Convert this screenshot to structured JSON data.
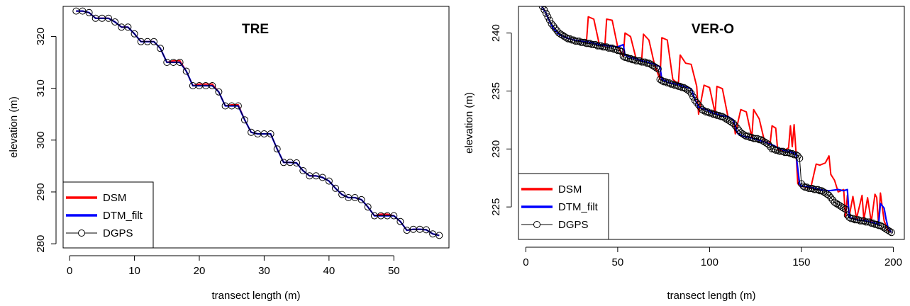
{
  "chart_data": [
    {
      "type": "line",
      "title": "TRE",
      "xlabel": "transect length (m)",
      "ylabel": "elevation (m)",
      "xlim": [
        -1,
        58.5
      ],
      "ylim": [
        279.2,
        325.8
      ],
      "xticks": [
        0,
        10,
        20,
        30,
        40,
        50
      ],
      "yticks": [
        280,
        290,
        300,
        310,
        320
      ],
      "legend_position": "bottom-left",
      "series": [
        {
          "name": "DSM",
          "color": "#ff0000",
          "x": [
            1,
            2,
            3,
            4,
            5,
            6,
            7,
            8,
            9,
            10,
            11,
            12,
            13,
            14,
            15,
            16,
            17,
            18,
            19,
            20,
            21,
            22,
            23,
            24,
            25,
            26,
            27,
            28,
            29,
            30,
            31,
            32,
            33,
            34,
            35,
            36,
            37,
            38,
            39,
            40,
            41,
            42,
            43,
            44,
            45,
            46,
            47,
            48,
            49,
            50,
            51,
            52,
            53,
            54,
            55,
            56,
            57
          ],
          "y": [
            324.9,
            324.9,
            324.6,
            323.5,
            323.5,
            323.5,
            322.8,
            321.8,
            321.8,
            320.5,
            319.0,
            319.0,
            319.0,
            317.7,
            315.0,
            315.3,
            315.3,
            313.3,
            310.5,
            310.8,
            310.8,
            310.8,
            309.3,
            306.6,
            306.8,
            306.8,
            303.9,
            301.5,
            301.2,
            301.2,
            301.2,
            298.3,
            295.7,
            295.7,
            295.6,
            294.1,
            293.1,
            293.1,
            292.8,
            292.1,
            290.7,
            289.5,
            288.9,
            288.9,
            288.5,
            287.1,
            285.4,
            285.7,
            285.7,
            285.4,
            284.3,
            282.6,
            282.8,
            282.8,
            282.7,
            281.9,
            281.6
          ]
        },
        {
          "name": "DTM_filt",
          "color": "#0000ff",
          "x": [
            1,
            2,
            3,
            4,
            5,
            6,
            7,
            8,
            9,
            10,
            11,
            12,
            13,
            14,
            15,
            16,
            17,
            18,
            19,
            20,
            21,
            22,
            23,
            24,
            25,
            26,
            27,
            28,
            29,
            30,
            31,
            32,
            33,
            34,
            35,
            36,
            37,
            38,
            39,
            40,
            41,
            42,
            43,
            44,
            45,
            46,
            47,
            48,
            49,
            50,
            51,
            52,
            53,
            54,
            55,
            56,
            57
          ],
          "y": [
            324.9,
            324.9,
            324.6,
            323.5,
            323.5,
            323.5,
            322.8,
            321.8,
            321.8,
            320.5,
            319.0,
            319.0,
            319.0,
            317.7,
            315.0,
            315.0,
            315.0,
            313.3,
            310.5,
            310.5,
            310.5,
            310.5,
            309.3,
            306.6,
            306.6,
            306.6,
            303.9,
            301.5,
            301.2,
            301.2,
            301.2,
            298.3,
            295.7,
            295.7,
            295.6,
            294.1,
            293.1,
            293.1,
            292.8,
            292.1,
            290.7,
            289.5,
            288.9,
            288.9,
            288.5,
            287.1,
            285.4,
            285.4,
            285.4,
            285.4,
            284.3,
            282.6,
            282.8,
            282.8,
            282.7,
            281.9,
            281.6
          ]
        },
        {
          "name": "DGPS",
          "color": "#000000",
          "marker": "open-circle",
          "x": [
            1,
            2,
            3,
            4,
            5,
            6,
            7,
            8,
            9,
            10,
            11,
            12,
            13,
            14,
            15,
            16,
            17,
            18,
            19,
            20,
            21,
            22,
            23,
            24,
            25,
            26,
            27,
            28,
            29,
            30,
            31,
            32,
            33,
            34,
            35,
            36,
            37,
            38,
            39,
            40,
            41,
            42,
            43,
            44,
            45,
            46,
            47,
            48,
            49,
            50,
            51,
            52,
            53,
            54,
            55,
            56,
            57
          ],
          "y": [
            324.9,
            324.9,
            324.6,
            323.5,
            323.5,
            323.5,
            322.8,
            321.8,
            321.8,
            320.5,
            319.0,
            319.0,
            319.0,
            317.7,
            315.0,
            315.0,
            315.0,
            313.3,
            310.5,
            310.5,
            310.5,
            310.5,
            309.3,
            306.6,
            306.6,
            306.6,
            303.9,
            301.5,
            301.2,
            301.2,
            301.2,
            298.3,
            295.7,
            295.7,
            295.6,
            294.1,
            293.1,
            293.1,
            292.8,
            292.1,
            290.7,
            289.5,
            288.9,
            288.9,
            288.5,
            287.1,
            285.4,
            285.4,
            285.4,
            285.4,
            284.3,
            282.6,
            282.8,
            282.8,
            282.7,
            281.9,
            281.6
          ]
        }
      ]
    },
    {
      "type": "line",
      "title": "VER-O",
      "xlabel": "transect length (m)",
      "ylabel": "elevation (m)",
      "xlim": [
        -4,
        206
      ],
      "ylim": [
        222.2,
        242.3
      ],
      "xticks": [
        0,
        50,
        100,
        150,
        200
      ],
      "yticks": [
        225,
        230,
        235,
        240
      ],
      "legend_position": "bottom-left",
      "series": [
        {
          "name": "DSM",
          "color": "#ff0000",
          "x": [
            8,
            11,
            13,
            15,
            18,
            22,
            26,
            30,
            33,
            34,
            37,
            40,
            43,
            44,
            47,
            50,
            53,
            54,
            57,
            60,
            63,
            64,
            67,
            70,
            73,
            74,
            77,
            80,
            83,
            84,
            87,
            90,
            93,
            94,
            97,
            100,
            103,
            104,
            107,
            110,
            113,
            114,
            117,
            120,
            123,
            124,
            127,
            130,
            133,
            134,
            136,
            137,
            140,
            143,
            144,
            145,
            146,
            147,
            148,
            150,
            155,
            158,
            160,
            163,
            165,
            166,
            168,
            170,
            173,
            174,
            175,
            176,
            178,
            180,
            183,
            184,
            186,
            188,
            190,
            191,
            192,
            193,
            195,
            197,
            199
          ],
          "y": [
            242.5,
            241.7,
            241.0,
            240.4,
            239.9,
            239.6,
            239.4,
            239.3,
            239.2,
            241.4,
            241.2,
            239.0,
            238.9,
            241.2,
            241.1,
            238.8,
            238.0,
            240.0,
            239.7,
            237.8,
            237.6,
            239.9,
            239.4,
            237.3,
            236.0,
            239.6,
            239.4,
            236.0,
            235.6,
            238.1,
            237.4,
            237.3,
            235.4,
            233.0,
            235.5,
            235.3,
            233.1,
            235.4,
            235.2,
            232.8,
            232.5,
            231.3,
            233.4,
            233.2,
            231.0,
            233.4,
            232.6,
            230.6,
            230.5,
            232.0,
            231.8,
            230.0,
            229.8,
            230.1,
            232.0,
            230.2,
            232.1,
            229.8,
            227.0,
            226.8,
            226.6,
            228.7,
            228.6,
            228.8,
            229.4,
            227.8,
            227.3,
            226.3,
            226.5,
            224.1,
            226.0,
            224.2,
            225.9,
            224.0,
            226.0,
            223.9,
            225.8,
            223.7,
            226.1,
            225.8,
            223.5,
            226.2,
            223.8,
            223.0,
            222.8
          ]
        },
        {
          "name": "DTM_filt",
          "color": "#0000ff",
          "x": [
            8,
            11,
            13,
            15,
            18,
            22,
            26,
            30,
            35,
            40,
            45,
            50,
            53,
            54,
            57,
            60,
            63,
            66,
            70,
            73,
            74,
            78,
            82,
            86,
            90,
            92,
            94,
            98,
            102,
            106,
            110,
            113,
            115,
            118,
            122,
            126,
            130,
            133,
            135,
            137,
            140,
            143,
            147,
            148,
            149,
            150,
            155,
            160,
            165,
            170,
            173,
            175,
            176,
            180,
            185,
            190,
            192,
            193,
            195,
            196,
            197,
            198,
            199
          ],
          "y": [
            242.5,
            241.7,
            241.0,
            240.4,
            239.9,
            239.6,
            239.4,
            239.3,
            239.2,
            239.0,
            238.9,
            238.8,
            239.0,
            238.1,
            237.9,
            237.8,
            237.6,
            237.5,
            237.3,
            237.1,
            236.0,
            235.7,
            235.6,
            235.4,
            235.2,
            234.3,
            233.6,
            233.4,
            233.1,
            232.9,
            232.8,
            232.5,
            231.4,
            231.1,
            231.0,
            230.8,
            230.6,
            230.4,
            230.3,
            230.1,
            229.9,
            229.8,
            229.6,
            228.3,
            227.0,
            226.8,
            226.7,
            226.5,
            226.4,
            226.5,
            226.4,
            226.5,
            224.1,
            223.9,
            223.8,
            223.6,
            223.5,
            225.3,
            224.9,
            224.0,
            223.3,
            223.0,
            222.8
          ]
        },
        {
          "name": "DGPS",
          "color": "#000000",
          "marker": "open-circle",
          "x": [
            9,
            10,
            11,
            12,
            13,
            14,
            15,
            16,
            17,
            18,
            19,
            20,
            21,
            22,
            23,
            24,
            25,
            26,
            27,
            28,
            29,
            30,
            31,
            32,
            33,
            34,
            35,
            36,
            37,
            38,
            39,
            40,
            41,
            42,
            43,
            44,
            45,
            46,
            47,
            48,
            49,
            50,
            51,
            52,
            53,
            54,
            55,
            56,
            57,
            58,
            59,
            60,
            61,
            62,
            63,
            64,
            65,
            66,
            67,
            68,
            69,
            70,
            71,
            72,
            73,
            74,
            75,
            76,
            77,
            78,
            79,
            80,
            81,
            82,
            83,
            84,
            85,
            86,
            87,
            88,
            89,
            90,
            91,
            92,
            93,
            94,
            95,
            96,
            97,
            98,
            99,
            100,
            101,
            102,
            103,
            104,
            105,
            106,
            107,
            108,
            109,
            110,
            111,
            112,
            113,
            114,
            115,
            116,
            117,
            118,
            119,
            120,
            121,
            122,
            123,
            124,
            125,
            126,
            127,
            128,
            129,
            130,
            131,
            132,
            133,
            134,
            135,
            136,
            137,
            138,
            139,
            140,
            141,
            142,
            143,
            144,
            145,
            146,
            147,
            148,
            149,
            150,
            151,
            152,
            153,
            154,
            155,
            156,
            157,
            158,
            159,
            160,
            161,
            162,
            163,
            164,
            165,
            166,
            167,
            168,
            169,
            170,
            171,
            172,
            173,
            174,
            175,
            176,
            177,
            178,
            179,
            180,
            181,
            182,
            183,
            184,
            185,
            186,
            187,
            188,
            189,
            190,
            191,
            192,
            193,
            194,
            195,
            196,
            197,
            198,
            199
          ],
          "y": [
            242.3,
            242.0,
            241.7,
            241.4,
            241.1,
            240.8,
            240.6,
            240.4,
            240.2,
            240.0,
            239.9,
            239.8,
            239.7,
            239.6,
            239.5,
            239.5,
            239.4,
            239.4,
            239.3,
            239.3,
            239.3,
            239.2,
            239.2,
            239.2,
            239.1,
            239.1,
            239.1,
            239.0,
            239.0,
            239.0,
            238.9,
            238.9,
            238.9,
            238.8,
            238.8,
            238.8,
            238.7,
            238.7,
            238.7,
            238.6,
            238.6,
            238.5,
            238.5,
            238.4,
            238.0,
            237.9,
            237.9,
            237.8,
            237.8,
            237.7,
            237.7,
            237.6,
            237.6,
            237.6,
            237.5,
            237.5,
            237.5,
            237.4,
            237.4,
            237.3,
            237.2,
            237.1,
            237.0,
            236.9,
            236.0,
            235.9,
            235.8,
            235.8,
            235.7,
            235.7,
            235.6,
            235.6,
            235.5,
            235.5,
            235.4,
            235.4,
            235.3,
            235.3,
            235.2,
            235.1,
            235.0,
            234.8,
            234.5,
            234.2,
            234.0,
            233.8,
            233.6,
            233.4,
            233.3,
            233.2,
            233.2,
            233.1,
            233.1,
            233.0,
            233.0,
            232.9,
            232.9,
            232.8,
            232.8,
            232.7,
            232.6,
            232.5,
            232.4,
            232.3,
            232.2,
            232.0,
            231.8,
            231.6,
            231.4,
            231.3,
            231.2,
            231.1,
            231.1,
            231.0,
            231.0,
            230.9,
            230.9,
            230.9,
            230.8,
            230.8,
            230.7,
            230.6,
            230.5,
            230.4,
            230.2,
            230.0,
            230.0,
            229.9,
            229.9,
            229.8,
            229.8,
            229.8,
            229.7,
            229.7,
            229.7,
            229.6,
            229.6,
            229.5,
            229.5,
            229.4,
            229.2,
            227.0,
            226.8,
            226.7,
            226.7,
            226.6,
            226.6,
            226.6,
            226.5,
            226.5,
            226.5,
            226.4,
            226.4,
            226.3,
            226.2,
            226.1,
            226.0,
            225.8,
            225.6,
            225.4,
            225.3,
            225.2,
            225.1,
            225.0,
            224.9,
            224.8,
            224.3,
            224.1,
            224.0,
            224.0,
            223.9,
            223.9,
            223.9,
            223.8,
            223.8,
            223.8,
            223.7,
            223.7,
            223.7,
            223.6,
            223.6,
            223.5,
            223.5,
            223.4,
            223.4,
            223.3,
            223.2,
            223.1,
            223.0,
            222.9,
            222.8
          ]
        }
      ]
    }
  ]
}
